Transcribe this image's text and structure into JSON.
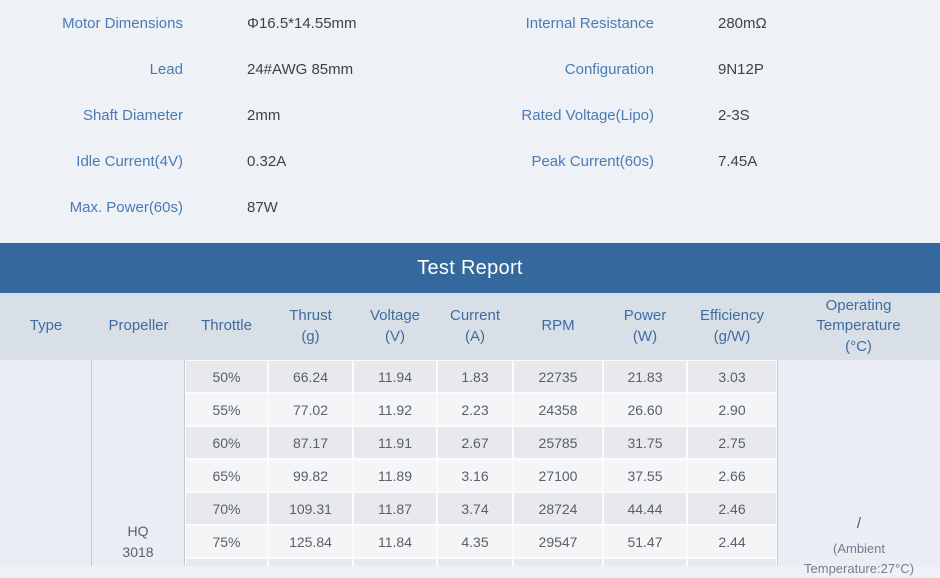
{
  "colors": {
    "accent_blue": "#35689c",
    "label_blue": "#4a7bb3",
    "header_bg": "#d9dfe6",
    "row_shade": "#e7e9ec",
    "row_lite": "#f3f5f7"
  },
  "specs": {
    "rows": [
      {
        "l1": "Motor Dimensions",
        "v1": "Φ16.5*14.55mm",
        "l2": "Internal Resistance",
        "v2": "280mΩ"
      },
      {
        "l1": "Lead",
        "v1": "24#AWG 85mm",
        "l2": "Configuration",
        "v2": "9N12P"
      },
      {
        "l1": "Shaft Diameter",
        "v1": "2mm",
        "l2": "Rated Voltage(Lipo)",
        "v2": "2-3S"
      },
      {
        "l1": "Idle Current(4V)",
        "v1": "0.32A",
        "l2": "Peak Current(60s)",
        "v2": "7.45A"
      },
      {
        "l1": "Max. Power(60s)",
        "v1": "87W",
        "l2": "",
        "v2": ""
      }
    ]
  },
  "report": {
    "title": "Test Report",
    "headers": {
      "type": "Type",
      "propeller": "Propeller",
      "throttle": "Throttle",
      "thrust": "Thrust\n(g)",
      "voltage": "Voltage\n(V)",
      "current": "Current\n(A)",
      "rpm": "RPM",
      "power": "Power\n(W)",
      "efficiency": "Efficiency\n(g/W)",
      "operating_temperature": "Operating\nTemperature\n(°C)"
    },
    "propeller_value": "HQ\n3018",
    "operating_temperature_value": {
      "slash": "/",
      "note": "(Ambient\nTemperature:27°C)"
    },
    "rows": [
      {
        "throttle": "50%",
        "thrust": "66.24",
        "voltage": "11.94",
        "current": "1.83",
        "rpm": "22735",
        "power": "21.83",
        "efficiency": "3.03"
      },
      {
        "throttle": "55%",
        "thrust": "77.02",
        "voltage": "11.92",
        "current": "2.23",
        "rpm": "24358",
        "power": "26.60",
        "efficiency": "2.90"
      },
      {
        "throttle": "60%",
        "thrust": "87.17",
        "voltage": "11.91",
        "current": "2.67",
        "rpm": "25785",
        "power": "31.75",
        "efficiency": "2.75"
      },
      {
        "throttle": "65%",
        "thrust": "99.82",
        "voltage": "11.89",
        "current": "3.16",
        "rpm": "27100",
        "power": "37.55",
        "efficiency": "2.66"
      },
      {
        "throttle": "70%",
        "thrust": "109.31",
        "voltage": "11.87",
        "current": "3.74",
        "rpm": "28724",
        "power": "44.44",
        "efficiency": "2.46"
      },
      {
        "throttle": "75%",
        "thrust": "125.84",
        "voltage": "11.84",
        "current": "4.35",
        "rpm": "29547",
        "power": "51.47",
        "efficiency": "2.44"
      }
    ]
  }
}
